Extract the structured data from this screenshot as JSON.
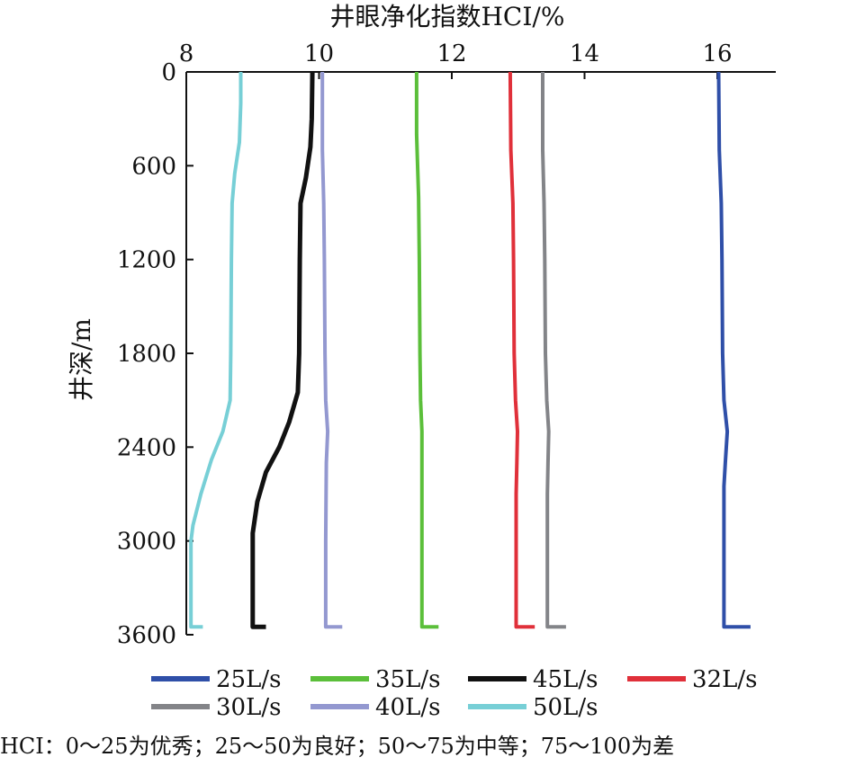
{
  "chart_data": {
    "type": "line",
    "xlabel": "井眼净化指数HCI/%",
    "ylabel": "井深/m",
    "xlim": [
      8,
      16.9
    ],
    "ylim": [
      0,
      3600
    ],
    "y_inverted": true,
    "x_axis_position": "top",
    "grid": false,
    "legend_position": "bottom",
    "x_ticks": [
      8,
      10,
      12,
      14,
      16
    ],
    "y_ticks": [
      0,
      600,
      1200,
      1800,
      2400,
      3000,
      3600
    ],
    "series": [
      {
        "name": "25L/s",
        "color": "#2f4fa8",
        "points": [
          [
            16.02,
            0
          ],
          [
            16.03,
            500
          ],
          [
            16.06,
            840
          ],
          [
            16.07,
            1200
          ],
          [
            16.08,
            1800
          ],
          [
            16.1,
            2100
          ],
          [
            16.15,
            2300
          ],
          [
            16.12,
            2500
          ],
          [
            16.1,
            2650
          ],
          [
            16.1,
            3000
          ],
          [
            16.1,
            3550
          ],
          [
            16.5,
            3550
          ]
        ]
      },
      {
        "name": "35L/s",
        "color": "#5bbf3a",
        "points": [
          [
            11.47,
            0
          ],
          [
            11.47,
            400
          ],
          [
            11.5,
            800
          ],
          [
            11.51,
            1200
          ],
          [
            11.52,
            1800
          ],
          [
            11.53,
            2100
          ],
          [
            11.55,
            2300
          ],
          [
            11.55,
            3000
          ],
          [
            11.55,
            3550
          ],
          [
            11.8,
            3550
          ]
        ]
      },
      {
        "name": "45L/s",
        "color": "#111111",
        "points": [
          [
            9.9,
            0
          ],
          [
            9.89,
            300
          ],
          [
            9.87,
            480
          ],
          [
            9.8,
            680
          ],
          [
            9.72,
            840
          ],
          [
            9.71,
            1200
          ],
          [
            9.7,
            1800
          ],
          [
            9.68,
            2050
          ],
          [
            9.55,
            2240
          ],
          [
            9.4,
            2400
          ],
          [
            9.2,
            2560
          ],
          [
            9.07,
            2750
          ],
          [
            9.0,
            2950
          ],
          [
            9.0,
            3000
          ],
          [
            9.0,
            3550
          ],
          [
            9.2,
            3550
          ]
        ]
      },
      {
        "name": "32L/s",
        "color": "#e0303a",
        "points": [
          [
            12.88,
            0
          ],
          [
            12.89,
            500
          ],
          [
            12.92,
            840
          ],
          [
            12.93,
            1200
          ],
          [
            12.94,
            1800
          ],
          [
            12.96,
            2100
          ],
          [
            12.99,
            2300
          ],
          [
            12.98,
            2500
          ],
          [
            12.97,
            2700
          ],
          [
            12.97,
            3000
          ],
          [
            12.97,
            3550
          ],
          [
            13.25,
            3550
          ]
        ]
      },
      {
        "name": "30L/s",
        "color": "#838488",
        "points": [
          [
            13.37,
            0
          ],
          [
            13.37,
            500
          ],
          [
            13.39,
            840
          ],
          [
            13.4,
            1200
          ],
          [
            13.41,
            1800
          ],
          [
            13.43,
            2100
          ],
          [
            13.46,
            2300
          ],
          [
            13.45,
            2500
          ],
          [
            13.44,
            2700
          ],
          [
            13.44,
            3000
          ],
          [
            13.44,
            3550
          ],
          [
            13.72,
            3550
          ]
        ]
      },
      {
        "name": "40L/s",
        "color": "#9398d0",
        "points": [
          [
            10.05,
            0
          ],
          [
            10.05,
            500
          ],
          [
            10.07,
            840
          ],
          [
            10.08,
            1200
          ],
          [
            10.09,
            1800
          ],
          [
            10.1,
            2100
          ],
          [
            10.13,
            2300
          ],
          [
            10.11,
            2500
          ],
          [
            10.1,
            3000
          ],
          [
            10.1,
            3550
          ],
          [
            10.35,
            3550
          ]
        ]
      },
      {
        "name": "50L/s",
        "color": "#77cfd6",
        "points": [
          [
            8.82,
            0
          ],
          [
            8.82,
            200
          ],
          [
            8.8,
            450
          ],
          [
            8.73,
            650
          ],
          [
            8.69,
            840
          ],
          [
            8.68,
            1200
          ],
          [
            8.67,
            1800
          ],
          [
            8.66,
            2100
          ],
          [
            8.55,
            2300
          ],
          [
            8.38,
            2480
          ],
          [
            8.22,
            2700
          ],
          [
            8.1,
            2900
          ],
          [
            8.07,
            3000
          ],
          [
            8.07,
            3550
          ],
          [
            8.25,
            3550
          ]
        ]
      }
    ],
    "legend_rows": [
      [
        "25L/s",
        "35L/s",
        "45L/s",
        "32L/s"
      ],
      [
        "30L/s",
        "40L/s",
        "50L/s"
      ]
    ]
  },
  "footnote": "HCI：0～25为优秀；25～50为良好；50～75为中等；75～100为差"
}
